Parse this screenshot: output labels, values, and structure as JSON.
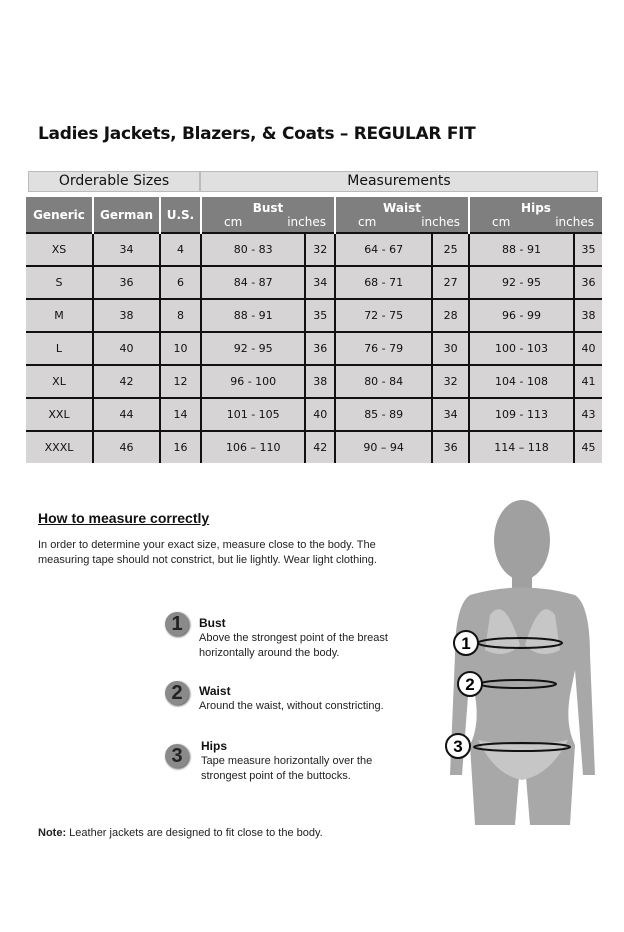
{
  "title": "Ladies Jackets, Blazers, & Coats – REGULAR FIT",
  "group_headers": {
    "orderable": "Orderable Sizes",
    "measurements": "Measurements"
  },
  "columns": {
    "generic": "Generic",
    "german": "German",
    "us": "U.S.",
    "bust": "Bust",
    "waist": "Waist",
    "hips": "Hips",
    "cm": "cm",
    "inches": "inches"
  },
  "rows": [
    [
      "XS",
      "34",
      "4",
      "80 - 83",
      "32",
      "64 - 67",
      "25",
      "88 - 91",
      "35"
    ],
    [
      "S",
      "36",
      "6",
      "84 - 87",
      "34",
      "68 - 71",
      "27",
      "92 - 95",
      "36"
    ],
    [
      "M",
      "38",
      "8",
      "88 - 91",
      "35",
      "72 - 75",
      "28",
      "96 - 99",
      "38"
    ],
    [
      "L",
      "40",
      "10",
      "92 - 95",
      "36",
      "76 - 79",
      "30",
      "100 - 103",
      "40"
    ],
    [
      "XL",
      "42",
      "12",
      "96 - 100",
      "38",
      "80 - 84",
      "32",
      "104 - 108",
      "41"
    ],
    [
      "XXL",
      "44",
      "14",
      "101 - 105",
      "40",
      "85 - 89",
      "34",
      "109 - 113",
      "43"
    ],
    [
      "XXXL",
      "46",
      "16",
      "106 – 110",
      "42",
      "90 – 94",
      "36",
      "114 – 118",
      "45"
    ]
  ],
  "howto": {
    "heading": "How to measure correctly",
    "intro": "In order to determine your exact size, measure close to the body. The measuring tape should not constrict, but lie lightly. Wear light clothing.",
    "steps": [
      {
        "n": "1",
        "label": "Bust",
        "text": "Above the strongest point of the breast horizontally around the body."
      },
      {
        "n": "2",
        "label": "Waist",
        "text": "Around the waist, without constricting."
      },
      {
        "n": "3",
        "label": "Hips",
        "text": "Tape measure horizontally over the strongest point of the buttocks."
      }
    ]
  },
  "note": {
    "label": "Note:",
    "text": " Leather jackets are designed to fit close to the body."
  }
}
